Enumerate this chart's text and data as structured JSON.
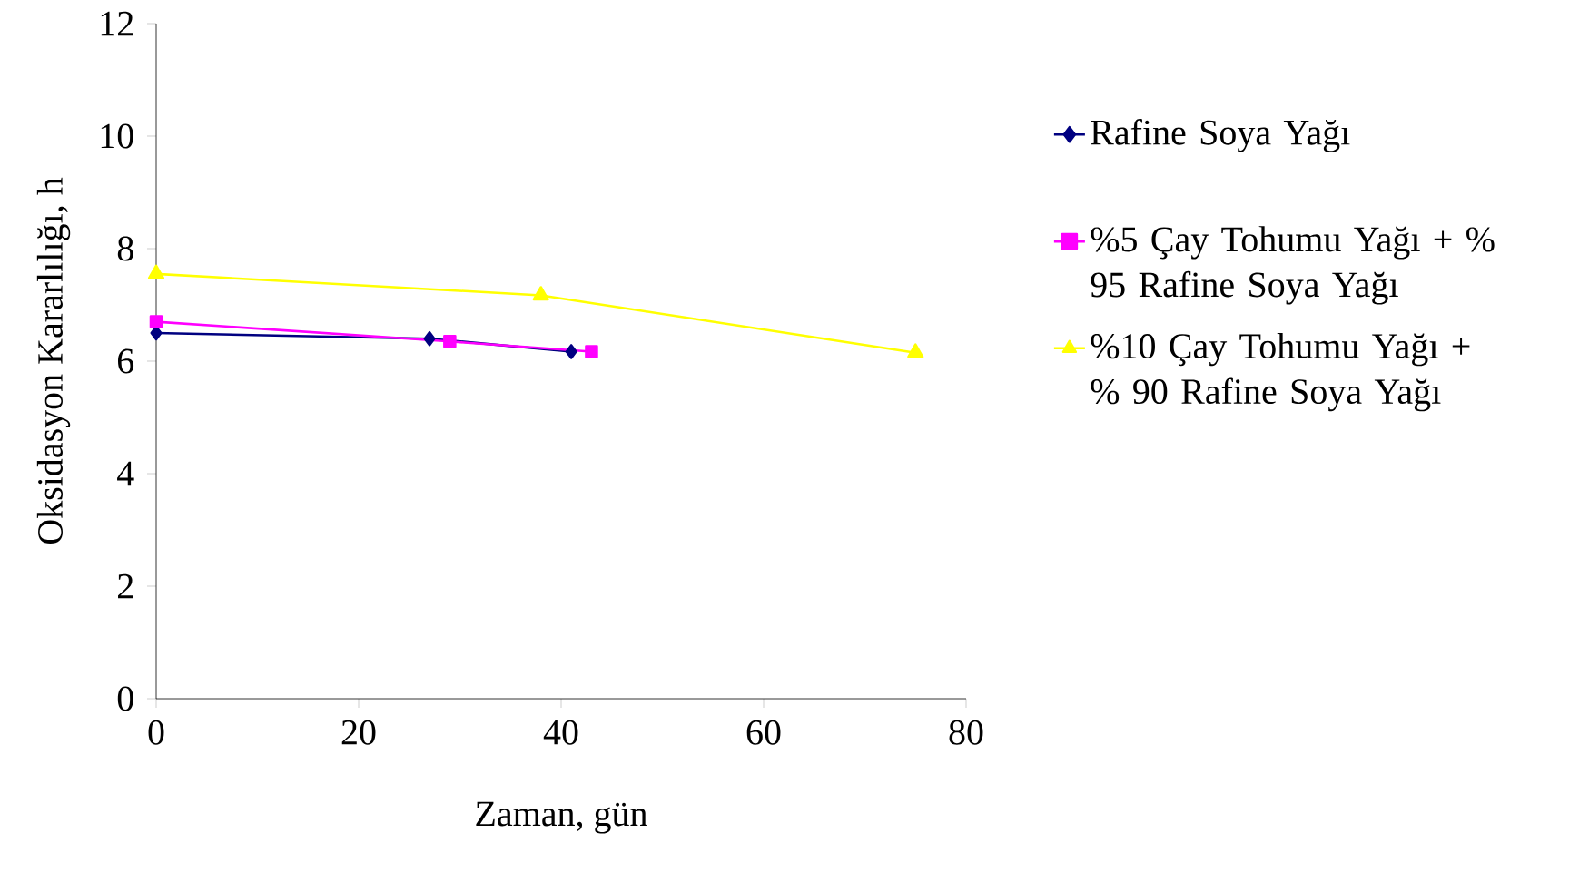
{
  "chart_data": {
    "type": "line",
    "xlabel": "Zaman, gün",
    "ylabel": "Oksidasyon Kararlılığı, h",
    "xlim": [
      0,
      80
    ],
    "xticks": [
      0,
      20,
      40,
      60,
      80
    ],
    "ylim": [
      0,
      12
    ],
    "yticks": [
      0,
      2,
      4,
      6,
      8,
      10,
      12
    ],
    "grid": false,
    "legend": "right",
    "line_style": "solid",
    "series": [
      {
        "name": "Rafine Soya Yağı",
        "color": "#000080",
        "marker": "diamond",
        "x": [
          0,
          27,
          41
        ],
        "values": [
          6.5,
          6.4,
          6.17
        ]
      },
      {
        "name": "%5 Çay Tohumu Yağı + % 95 Rafine Soya Yağı",
        "color": "#ff00ff",
        "marker": "square",
        "x": [
          0,
          29,
          43
        ],
        "values": [
          6.7,
          6.35,
          6.17
        ]
      },
      {
        "name": "%10 Çay Tohumu Yağı + % 90 Rafine Soya Yağı",
        "color": "#ffff00",
        "marker": "triangle",
        "x": [
          0,
          38,
          75
        ],
        "values": [
          7.55,
          7.17,
          6.15
        ]
      }
    ]
  }
}
